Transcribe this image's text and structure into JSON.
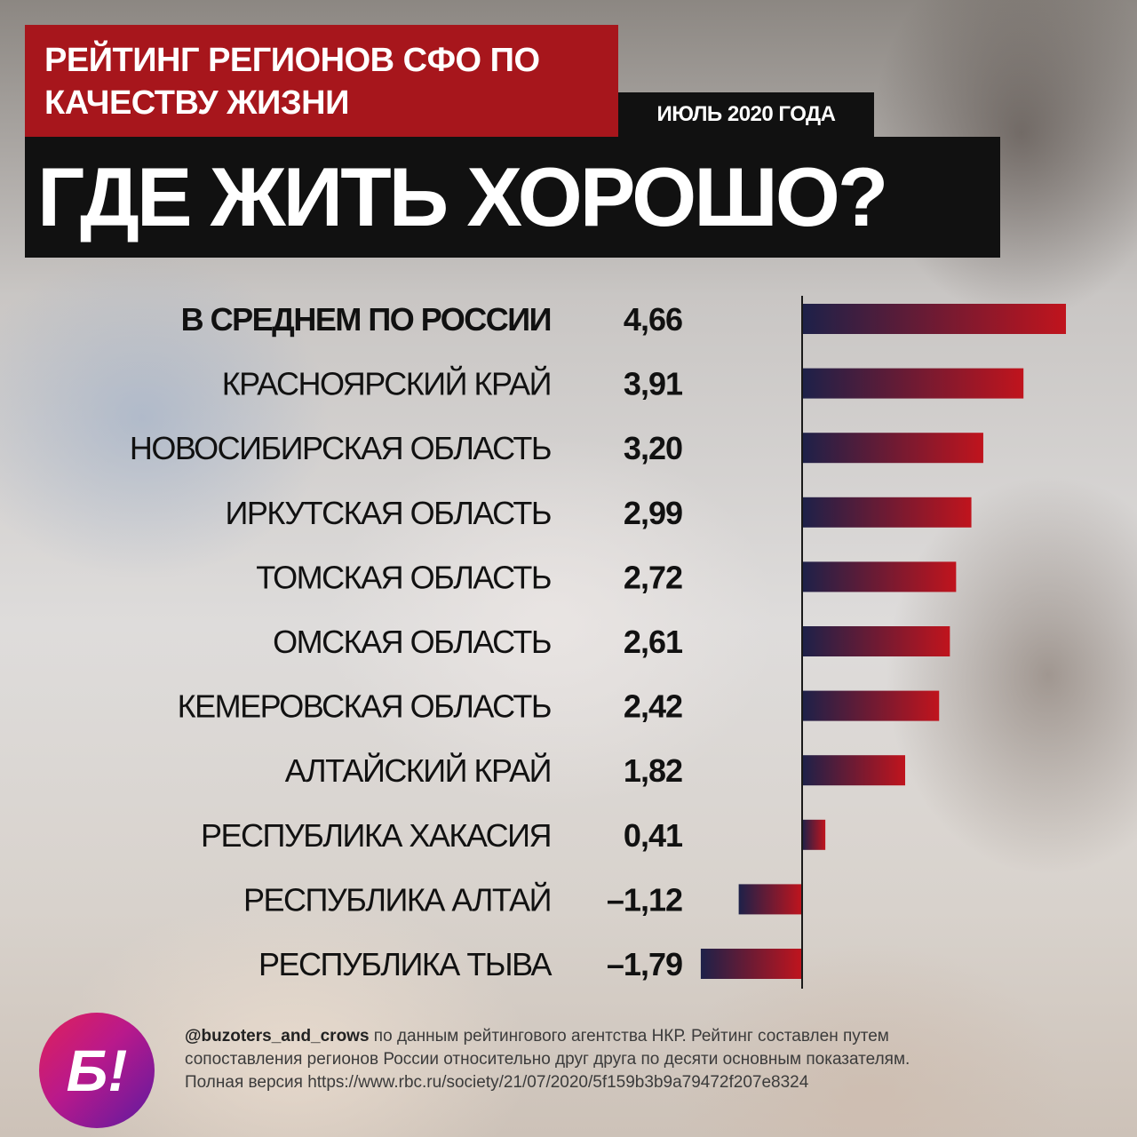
{
  "header": {
    "title_line1": "РЕЙТИНГ РЕГИОНОВ СФО ПО",
    "title_line2": "КАЧЕСТВУ ЖИЗНИ",
    "date": "ИЮЛЬ 2020 ГОДА",
    "headline": "ГДЕ ЖИТЬ ХОРОШО?"
  },
  "colors": {
    "title_red": "#a7161c",
    "headline_black": "#111111",
    "bar_start": "#1d2149",
    "bar_end": "#c0141d"
  },
  "chart_data": {
    "type": "bar",
    "orientation": "horizontal",
    "categories": [
      "В СРЕДНЕМ ПО РОССИИ",
      "КРАСНОЯРСКИЙ КРАЙ",
      "НОВОСИБИРСКАЯ ОБЛАСТЬ",
      "ИРКУТСКАЯ ОБЛАСТЬ",
      "ТОМСКАЯ ОБЛАСТЬ",
      "ОМСКАЯ ОБЛАСТЬ",
      "КЕМЕРОВСКАЯ ОБЛАСТЬ",
      "АЛТАЙСКИЙ КРАЙ",
      "РЕСПУБЛИКА ХАКАСИЯ",
      "РЕСПУБЛИКА АЛТАЙ",
      "РЕСПУБЛИКА ТЫВА"
    ],
    "values": [
      4.66,
      3.91,
      3.2,
      2.99,
      2.72,
      2.61,
      2.42,
      1.82,
      0.41,
      -1.12,
      -1.79
    ],
    "value_labels": [
      "4,66",
      "3,91",
      "3,20",
      "2,99",
      "2,72",
      "2,61",
      "2,42",
      "1,82",
      "0,41",
      "–1,12",
      "–1,79"
    ],
    "xlim": [
      -1.79,
      4.66
    ],
    "bold_categories": [
      "В СРЕДНЕМ ПО РОССИИ"
    ],
    "grid": false
  },
  "logo": {
    "text": "Б!"
  },
  "footer": {
    "handle": "@buzoters_and_crows",
    "text_line1": " по данным рейтингового агентства НКР. Рейтинг составлен путем",
    "text_line2": "сопоставления регионов России относительно друг друга по десяти основным показателям.",
    "text_line3": "Полная версия https://www.rbc.ru/society/21/07/2020/5f159b3b9a79472f207e8324"
  }
}
